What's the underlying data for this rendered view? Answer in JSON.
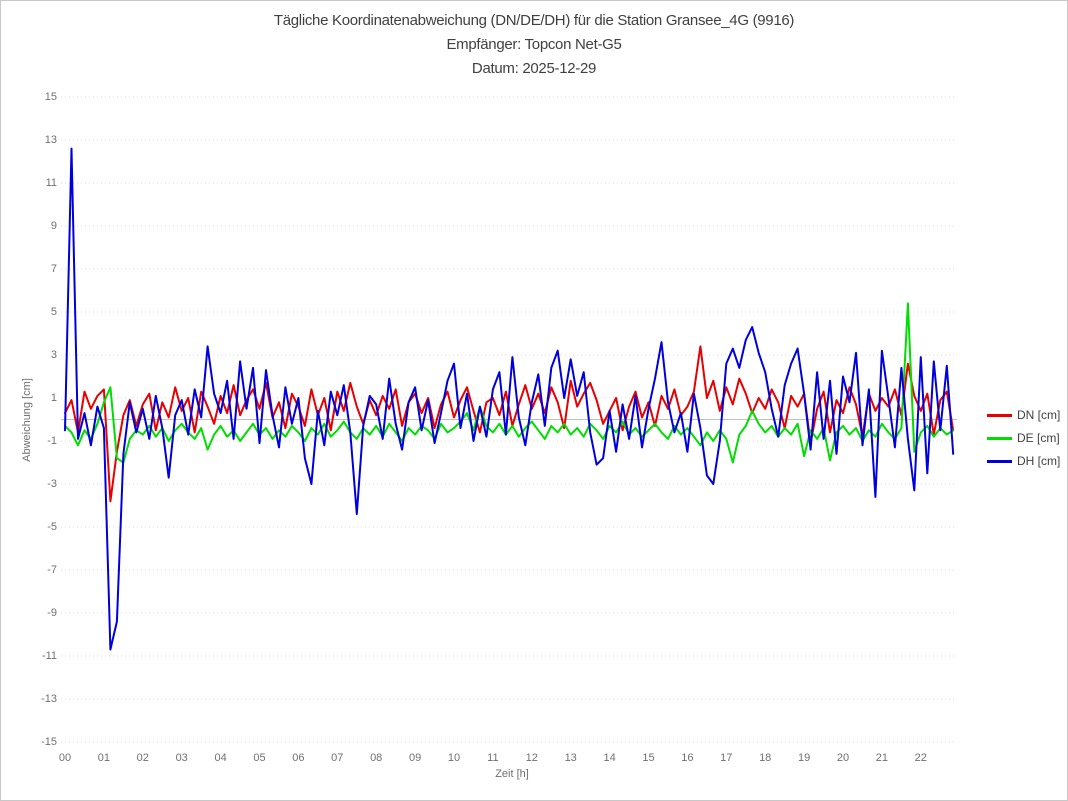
{
  "chart": {
    "title": "Tägliche Koordinatenabweichung (DN/DE/DH) für die Station Gransee_4G (9916)",
    "subtitle": "Empfänger: Topcon Net-G5",
    "date_line": "Datum: 2025-12-29",
    "xlabel": "Zeit [h]",
    "ylabel": "Abweichung [cm]"
  },
  "chart_data": {
    "type": "line",
    "title": "Tägliche Koordinatenabweichung (DN/DE/DH) für die Station Gransee_4G (9916)",
    "subtitle": "Empfänger: Topcon Net-G5",
    "date": "2025-12-29",
    "xlabel": "Zeit [h]",
    "ylabel": "Abweichung [cm]",
    "ylim": [
      -15,
      15
    ],
    "xlim_hours": [
      0,
      23
    ],
    "x_start_hour": 0,
    "x_step_hours": 0.16667,
    "grid": "dotted horizontal gridlines every 2 cm, solid line at 0",
    "legend_position": "right",
    "x_tick_labels": [
      "00",
      "01",
      "02",
      "03",
      "04",
      "05",
      "06",
      "07",
      "08",
      "09",
      "10",
      "11",
      "12",
      "13",
      "14",
      "15",
      "16",
      "17",
      "18",
      "19",
      "20",
      "21",
      "22"
    ],
    "y_ticks": [
      15,
      13,
      11,
      9,
      7,
      5,
      3,
      1,
      -1,
      -3,
      -5,
      -7,
      -9,
      -11,
      -13,
      -15
    ],
    "series": [
      {
        "name": "DN [cm]",
        "color": "#e80000",
        "values": [
          0.3,
          0.9,
          -0.6,
          1.3,
          0.5,
          1.1,
          1.4,
          -3.8,
          -1.5,
          0.2,
          0.9,
          -0.3,
          0.7,
          1.2,
          -0.5,
          0.8,
          0.1,
          1.5,
          0.4,
          1.0,
          -0.6,
          1.3,
          0.6,
          -0.2,
          1.1,
          0.3,
          1.6,
          0.2,
          0.9,
          1.4,
          0.5,
          1.7,
          0.1,
          0.8,
          -0.4,
          1.2,
          0.6,
          -0.3,
          1.4,
          0.2,
          1.0,
          -0.5,
          1.3,
          0.4,
          1.7,
          0.6,
          -0.2,
          0.9,
          0.2,
          1.1,
          0.5,
          1.4,
          -0.3,
          0.8,
          1.2,
          0.3,
          1.0,
          -0.4,
          0.7,
          1.3,
          0.1,
          0.9,
          1.5,
          0.4,
          -0.6,
          0.8,
          1.0,
          0.2,
          1.3,
          -0.3,
          0.7,
          1.6,
          0.5,
          1.2,
          0.3,
          1.5,
          0.8,
          -0.4,
          1.8,
          0.6,
          1.2,
          1.7,
          0.9,
          -0.2,
          0.4,
          1.0,
          -0.5,
          0.6,
          1.3,
          0.1,
          0.8,
          -0.3,
          1.1,
          0.5,
          1.4,
          0.2,
          0.6,
          1.3,
          3.4,
          1.0,
          1.8,
          0.4,
          1.5,
          0.7,
          1.9,
          1.2,
          0.3,
          1.0,
          0.5,
          1.4,
          0.8,
          -0.4,
          1.1,
          0.6,
          1.2,
          -1.1,
          0.5,
          1.3,
          -0.6,
          0.9,
          0.3,
          1.5,
          0.7,
          -0.8,
          1.2,
          0.4,
          1.0,
          0.6,
          1.4,
          0.2,
          2.6,
          1.1,
          0.4,
          1.2,
          -0.7,
          0.9,
          1.3,
          -0.5
        ]
      },
      {
        "name": "DE [cm]",
        "color": "#00dd00",
        "values": [
          -0.3,
          -0.6,
          -1.2,
          -0.5,
          -0.9,
          -0.2,
          0.8,
          1.5,
          -1.8,
          -2.0,
          -0.9,
          -0.5,
          -0.7,
          -0.3,
          -0.8,
          -0.4,
          -1.0,
          -0.5,
          -0.2,
          -0.6,
          -0.9,
          -0.4,
          -1.4,
          -0.7,
          -0.3,
          -0.8,
          -0.5,
          -1.0,
          -0.6,
          -0.2,
          -0.7,
          -0.4,
          -0.9,
          -0.5,
          -0.8,
          -0.3,
          -0.6,
          -1.0,
          -0.4,
          -0.7,
          -0.2,
          -0.8,
          -0.5,
          -0.1,
          -0.6,
          -0.9,
          -0.4,
          -0.7,
          -0.3,
          -0.8,
          -0.2,
          -0.6,
          -1.0,
          -0.4,
          -0.7,
          -0.3,
          -0.5,
          -0.9,
          -0.2,
          -0.6,
          -0.4,
          -0.1,
          0.3,
          -0.5,
          0.6,
          -0.3,
          -0.6,
          -0.2,
          -0.7,
          -0.3,
          -0.8,
          -0.4,
          -0.1,
          -0.5,
          -0.9,
          -0.3,
          -0.6,
          -0.2,
          -0.7,
          -0.4,
          -0.8,
          -0.2,
          -0.5,
          -0.9,
          -0.3,
          -0.6,
          -0.1,
          -0.7,
          -0.4,
          -0.8,
          -0.5,
          -0.2,
          -0.6,
          -0.9,
          -0.3,
          -0.7,
          -0.4,
          -0.8,
          -1.2,
          -0.6,
          -1.0,
          -0.5,
          -0.9,
          -2.0,
          -0.7,
          -0.3,
          0.4,
          -0.2,
          -0.6,
          -0.3,
          -0.8,
          -0.4,
          -0.7,
          -0.2,
          -1.7,
          -0.5,
          -0.9,
          -0.4,
          -1.9,
          -0.6,
          -0.3,
          -0.7,
          -0.4,
          -1.0,
          -0.5,
          -0.8,
          -0.2,
          -0.6,
          -0.9,
          -0.4,
          5.4,
          -1.5,
          -0.6,
          -0.3,
          -0.8,
          -0.4,
          -0.7,
          -0.5
        ]
      },
      {
        "name": "DH [cm]",
        "color": "#0000dd",
        "values": [
          -0.5,
          12.6,
          -0.9,
          0.3,
          -1.2,
          0.6,
          -0.4,
          -10.7,
          -9.4,
          -1.6,
          0.8,
          -0.6,
          0.5,
          -0.9,
          1.1,
          -0.4,
          -2.7,
          0.2,
          0.9,
          -0.7,
          1.4,
          0.1,
          3.4,
          1.2,
          0.3,
          1.8,
          -0.9,
          2.7,
          0.5,
          2.4,
          -1.1,
          2.3,
          0.2,
          -1.3,
          1.5,
          -0.2,
          1.0,
          -1.8,
          -3.0,
          0.4,
          -1.2,
          1.3,
          0.2,
          1.6,
          -0.6,
          -4.4,
          -0.3,
          1.1,
          0.7,
          -0.9,
          1.9,
          -0.2,
          -1.4,
          0.8,
          1.5,
          -0.5,
          0.9,
          -1.1,
          0.3,
          1.8,
          2.6,
          -0.4,
          1.2,
          -1.0,
          0.6,
          -0.8,
          1.4,
          2.2,
          -0.7,
          2.9,
          0.1,
          -1.2,
          0.8,
          2.1,
          -0.3,
          2.4,
          3.2,
          1.0,
          2.8,
          1.1,
          2.2,
          -0.6,
          -2.1,
          -1.8,
          0.4,
          -1.5,
          0.7,
          -0.9,
          1.1,
          -1.3,
          0.5,
          1.9,
          3.6,
          0.8,
          -0.6,
          0.3,
          -1.5,
          1.2,
          -0.4,
          -2.6,
          -3.0,
          -1.0,
          2.6,
          3.3,
          2.4,
          3.7,
          4.3,
          3.1,
          2.2,
          0.5,
          -0.8,
          1.6,
          2.6,
          3.3,
          1.2,
          -1.4,
          2.2,
          -0.9,
          1.8,
          -1.6,
          2.0,
          0.8,
          3.1,
          -1.2,
          1.4,
          -3.6,
          3.2,
          1.0,
          -1.3,
          2.4,
          -0.9,
          -3.3,
          2.9,
          -2.5,
          2.7,
          -0.5,
          2.5,
          -1.6
        ]
      }
    ]
  }
}
